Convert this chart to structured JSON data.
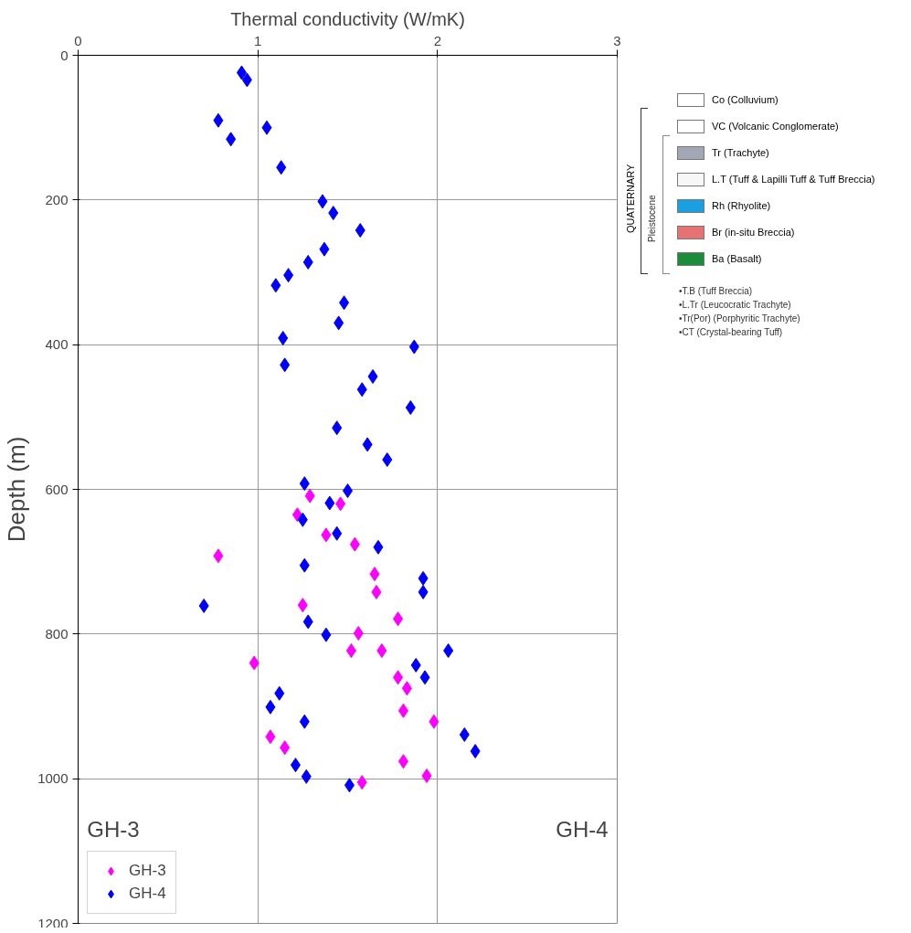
{
  "chart_data": {
    "type": "scatter",
    "xlabel": "Thermal conductivity (W/mK)",
    "ylabel": "Depth (m)",
    "xlim": [
      0,
      3
    ],
    "xticks": [
      0,
      1,
      2,
      3
    ],
    "ylim": [
      1200,
      0
    ],
    "yticks": [
      0,
      200,
      400,
      600,
      800,
      1000,
      1200
    ],
    "grid": true,
    "legend": "bottom left",
    "marker": "diamond",
    "series": [
      {
        "name": "GH-3",
        "color": "#ff00ff",
        "x": [
          1.29,
          1.46,
          1.22,
          1.38,
          1.54,
          0.78,
          1.65,
          1.66,
          1.25,
          1.78,
          1.56,
          1.52,
          1.69,
          0.98,
          1.78,
          1.83,
          1.81,
          1.98,
          1.07,
          1.15,
          1.81,
          1.94,
          1.58
        ],
        "values": [
          609,
          620,
          635,
          663,
          676,
          692,
          717,
          742,
          760,
          779,
          799,
          823,
          823,
          840,
          860,
          875,
          906,
          921,
          942,
          957,
          976,
          996,
          1005
        ]
      },
      {
        "name": "GH-4",
        "color": "#0000ff",
        "x": [
          0.91,
          0.94,
          0.78,
          1.05,
          0.85,
          1.13,
          1.36,
          1.42,
          1.57,
          1.37,
          1.28,
          1.17,
          1.1,
          1.48,
          1.45,
          1.14,
          1.87,
          1.15,
          1.64,
          1.58,
          1.85,
          1.44,
          1.61,
          1.72,
          1.26,
          1.5,
          1.4,
          1.25,
          1.44,
          1.67,
          1.26,
          1.92,
          1.92,
          0.7,
          1.28,
          1.38,
          2.06,
          1.88,
          1.93,
          1.12,
          1.07,
          1.26,
          2.15,
          2.21,
          1.21,
          1.27,
          1.51
        ],
        "values": [
          24,
          34,
          90,
          100,
          116,
          155,
          202,
          218,
          242,
          268,
          286,
          304,
          318,
          342,
          370,
          391,
          403,
          428,
          444,
          462,
          487,
          515,
          538,
          559,
          592,
          602,
          619,
          642,
          661,
          680,
          705,
          723,
          742,
          761,
          783,
          801,
          823,
          843,
          860,
          882,
          901,
          921,
          939,
          962,
          981,
          997,
          1009
        ]
      }
    ],
    "annotations": [
      "GH-3",
      "GH-4",
      "QUATERNARY",
      "Pleistocene",
      "Co (Colluvium)",
      "VC (Volcanic Conglomerate)",
      "Tr (Trachyte)",
      "L.T (Tuff & Lapilli Tuff & Tuff Breccia)",
      "Rh (Rhyolite)",
      "Br (in-situ Breccia)",
      "Ba (Basalt)",
      "•T.B (Tuff Breccia)",
      "•L.Tr (Leucocratic Trachyte)",
      "•Tr(Por) (Porphyritic Trachyte)",
      "•CT (Crystal-bearing Tuff)"
    ]
  }
}
